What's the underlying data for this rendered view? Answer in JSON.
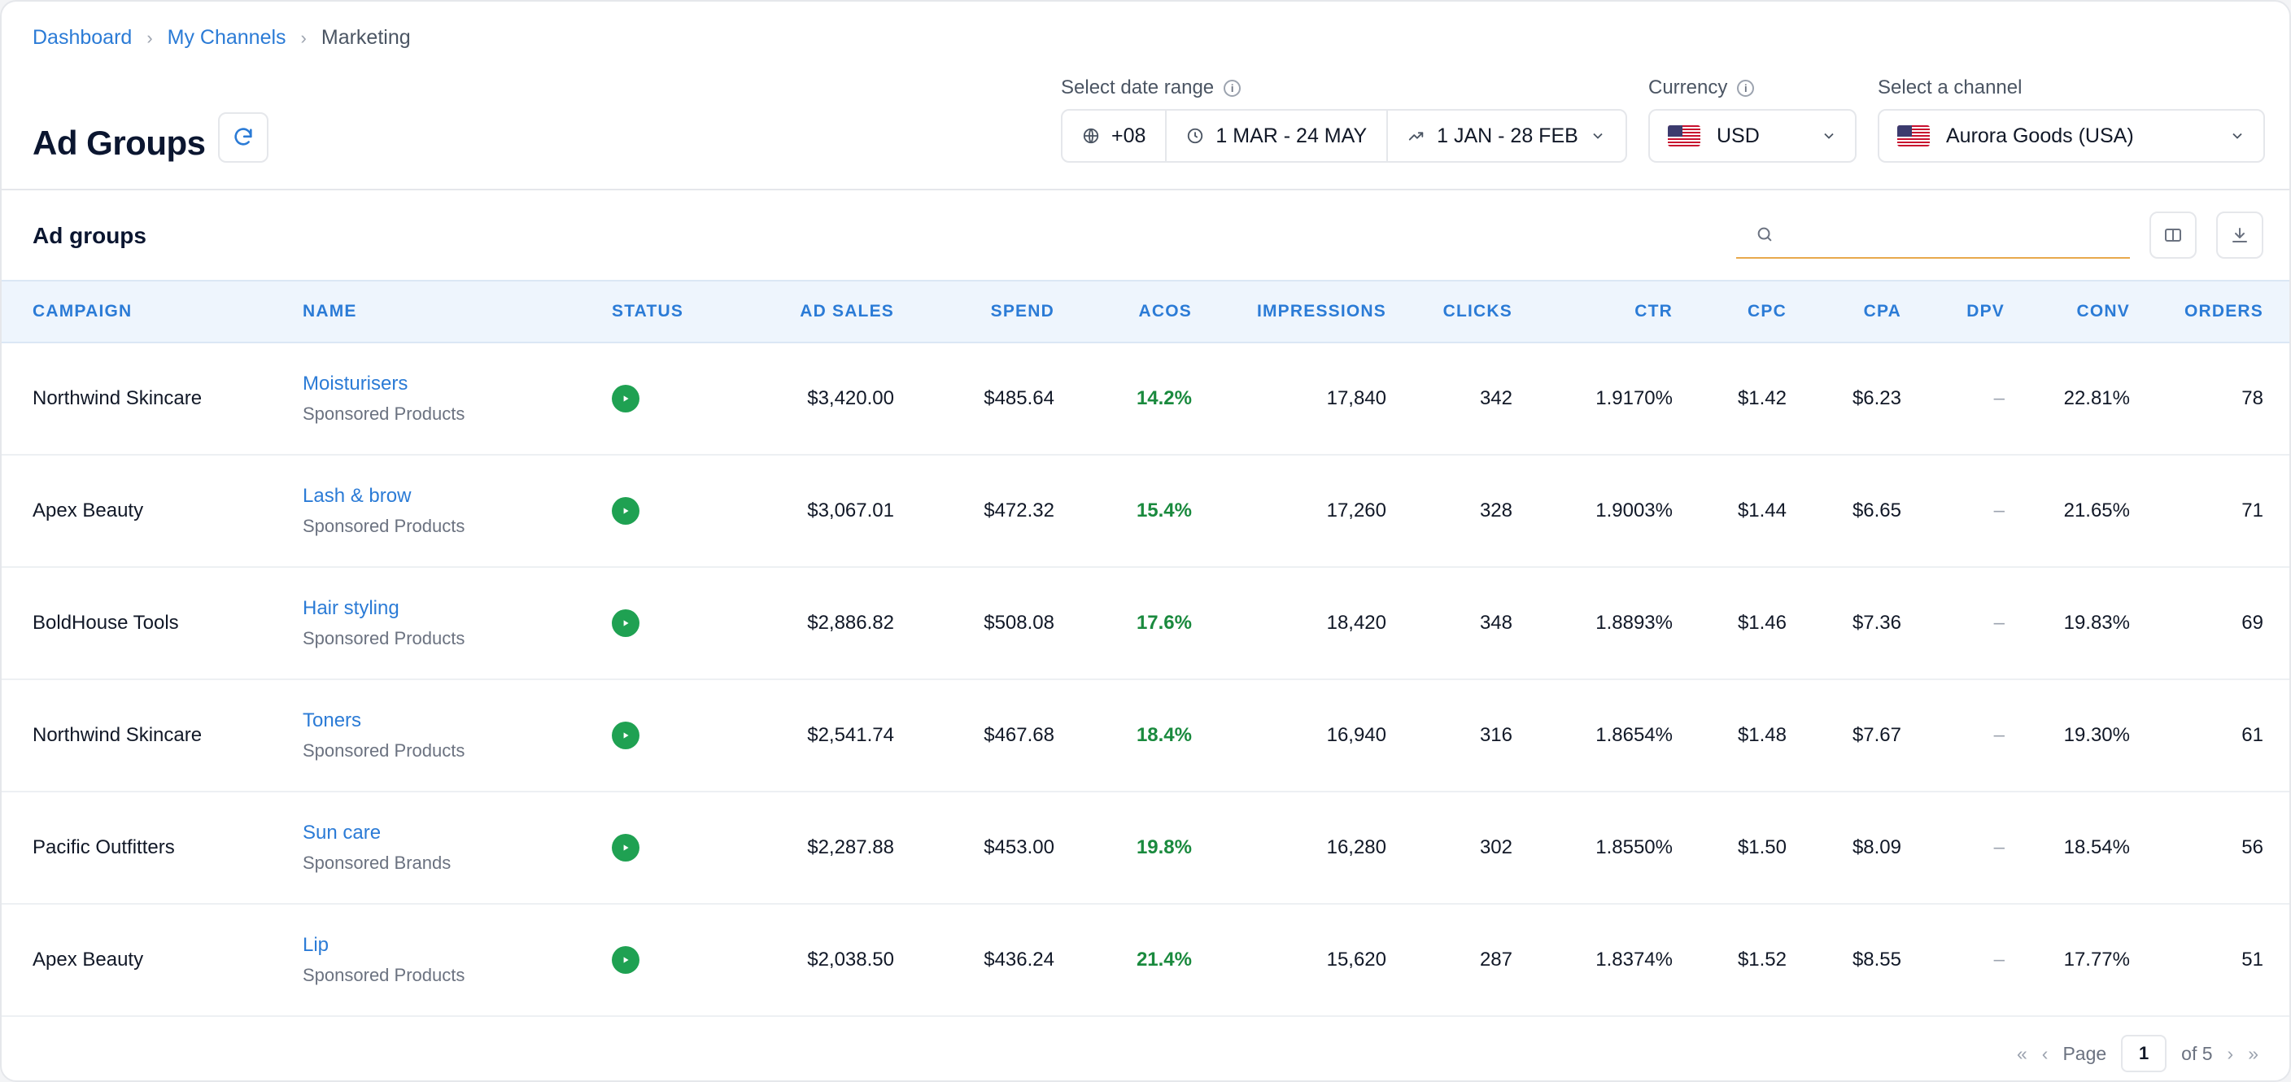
{
  "breadcrumb": {
    "items": [
      "Dashboard",
      "My Channels"
    ],
    "current": "Marketing",
    "separator": "›"
  },
  "page": {
    "title": "Ad Groups"
  },
  "filters": {
    "date_range_label": "Select date range",
    "timezone": "+08",
    "range_primary": "1 MAR - 24 MAY",
    "range_compare": "1 JAN - 28 FEB",
    "currency_label": "Currency",
    "currency_value": "USD",
    "channel_label": "Select a channel",
    "channel_value": "Aurora Goods (USA)"
  },
  "section": {
    "title": "Ad groups",
    "search_placeholder": ""
  },
  "table": {
    "headers": [
      "CAMPAIGN",
      "NAME",
      "STATUS",
      "AD SALES",
      "SPEND",
      "ACOS",
      "IMPRESSIONS",
      "CLICKS",
      "CTR",
      "CPC",
      "CPA",
      "DPV",
      "CONV",
      "ORDERS"
    ],
    "rows": [
      {
        "campaign": "Northwind Skincare",
        "name": "Moisturisers",
        "type": "Sponsored Products",
        "ad_sales": "$3,420.00",
        "spend": "$485.64",
        "acos": "14.2%",
        "impressions": "17,840",
        "clicks": "342",
        "ctr": "1.9170%",
        "cpc": "$1.42",
        "cpa": "$6.23",
        "dpv": "–",
        "conv": "22.81%",
        "orders": "78"
      },
      {
        "campaign": "Apex Beauty",
        "name": "Lash & brow",
        "type": "Sponsored Products",
        "ad_sales": "$3,067.01",
        "spend": "$472.32",
        "acos": "15.4%",
        "impressions": "17,260",
        "clicks": "328",
        "ctr": "1.9003%",
        "cpc": "$1.44",
        "cpa": "$6.65",
        "dpv": "–",
        "conv": "21.65%",
        "orders": "71"
      },
      {
        "campaign": "BoldHouse Tools",
        "name": "Hair styling",
        "type": "Sponsored Products",
        "ad_sales": "$2,886.82",
        "spend": "$508.08",
        "acos": "17.6%",
        "impressions": "18,420",
        "clicks": "348",
        "ctr": "1.8893%",
        "cpc": "$1.46",
        "cpa": "$7.36",
        "dpv": "–",
        "conv": "19.83%",
        "orders": "69"
      },
      {
        "campaign": "Northwind Skincare",
        "name": "Toners",
        "type": "Sponsored Products",
        "ad_sales": "$2,541.74",
        "spend": "$467.68",
        "acos": "18.4%",
        "impressions": "16,940",
        "clicks": "316",
        "ctr": "1.8654%",
        "cpc": "$1.48",
        "cpa": "$7.67",
        "dpv": "–",
        "conv": "19.30%",
        "orders": "61"
      },
      {
        "campaign": "Pacific Outfitters",
        "name": "Sun care",
        "type": "Sponsored Brands",
        "ad_sales": "$2,287.88",
        "spend": "$453.00",
        "acos": "19.8%",
        "impressions": "16,280",
        "clicks": "302",
        "ctr": "1.8550%",
        "cpc": "$1.50",
        "cpa": "$8.09",
        "dpv": "–",
        "conv": "18.54%",
        "orders": "56"
      },
      {
        "campaign": "Apex Beauty",
        "name": "Lip",
        "type": "Sponsored Products",
        "ad_sales": "$2,038.50",
        "spend": "$436.24",
        "acos": "21.4%",
        "impressions": "15,620",
        "clicks": "287",
        "ctr": "1.8374%",
        "cpc": "$1.52",
        "cpa": "$8.55",
        "dpv": "–",
        "conv": "17.77%",
        "orders": "51"
      }
    ]
  },
  "pagination": {
    "page_label": "Page",
    "current_page": "1",
    "of_label": "of 5"
  },
  "colors": {
    "accent": "#2b7bd6",
    "acos_green": "#1a8a3e",
    "status_active": "#1fa152",
    "search_underline": "#e8a94c",
    "header_bg": "#eef5fd"
  },
  "icons": {
    "refresh": "refresh-icon",
    "globe": "globe-icon",
    "clock": "clock-icon",
    "trend": "trend-up-icon",
    "columns": "columns-icon",
    "download": "download-icon",
    "search": "search-icon"
  }
}
